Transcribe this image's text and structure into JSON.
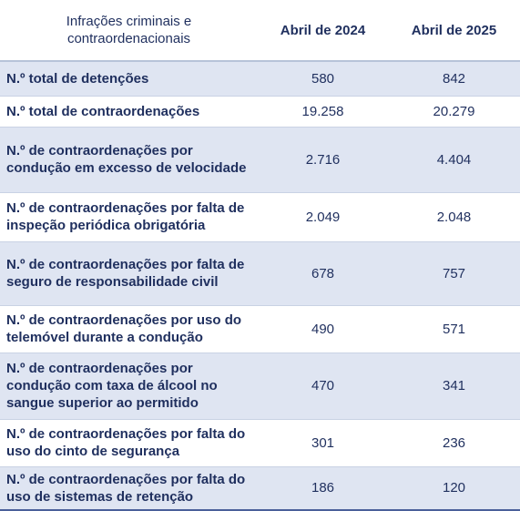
{
  "table": {
    "headers": {
      "label": "Infrações criminais e contraordenacionais",
      "col1": "Abril de 2024",
      "col2": "Abril de 2025"
    },
    "rows": [
      {
        "label": "N.º total de detenções",
        "v2024": "580",
        "v2025": "842"
      },
      {
        "label": "N.º total de contraordenações",
        "v2024": "19.258",
        "v2025": "20.279"
      },
      {
        "label": "N.º de contraordenações por condução em excesso de velocidade",
        "v2024": "2.716",
        "v2025": "4.404"
      },
      {
        "label": "N.º de contraordenações por falta de inspeção periódica obrigatória",
        "v2024": "2.049",
        "v2025": "2.048"
      },
      {
        "label": "N.º de contraordenações por falta de seguro de responsabilidade civil",
        "v2024": "678",
        "v2025": "757"
      },
      {
        "label": "N.º de contraordenações por uso do telemóvel durante a condução",
        "v2024": "490",
        "v2025": "571"
      },
      {
        "label": "N.º de contraordenações por condução com taxa de álcool no sangue superior ao permitido",
        "v2024": "470",
        "v2025": "341"
      },
      {
        "label": "N.º de contraordenações por falta do uso do cinto de segurança",
        "v2024": "301",
        "v2025": "236"
      },
      {
        "label": "N.º de contraordenações por falta do uso de sistemas de retenção",
        "v2024": "186",
        "v2025": "120"
      }
    ]
  },
  "colors": {
    "text": "#1f2f5e",
    "row_shade": "#dfe5f2",
    "bottom_rule": "#4a5f9a"
  }
}
